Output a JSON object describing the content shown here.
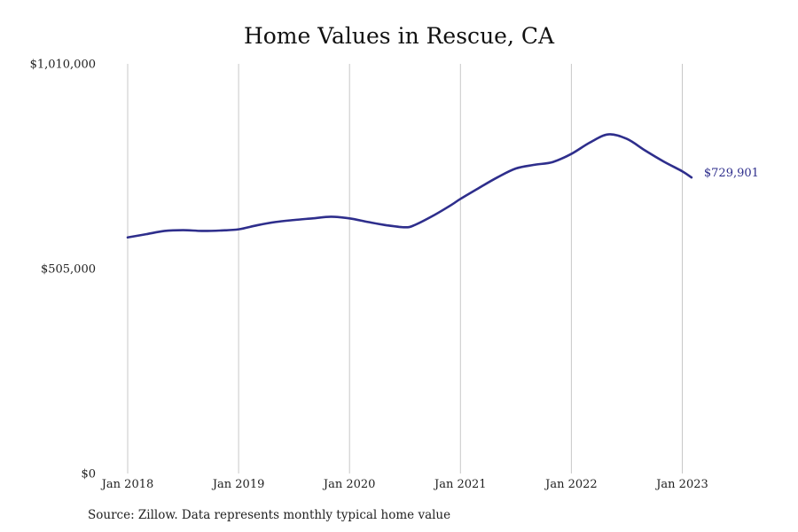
{
  "chart_data": {
    "type": "line",
    "title": "Home Values in Rescue, CA",
    "xlabel": "",
    "ylabel": "",
    "ylim": [
      0,
      1010000
    ],
    "y_ticks": [
      {
        "value": 0,
        "label": "$0"
      },
      {
        "value": 505000,
        "label": "$505,000"
      },
      {
        "value": 1010000,
        "label": "$1,010,000"
      }
    ],
    "x_ticks": [
      {
        "value": 2018.0,
        "label": "Jan 2018"
      },
      {
        "value": 2019.0,
        "label": "Jan 2019"
      },
      {
        "value": 2020.0,
        "label": "Jan 2020"
      },
      {
        "value": 2021.0,
        "label": "Jan 2021"
      },
      {
        "value": 2022.0,
        "label": "Jan 2022"
      },
      {
        "value": 2023.0,
        "label": "Jan 2023"
      }
    ],
    "xlim": [
      2018.0,
      2023.083
    ],
    "grid": "vertical",
    "colors": {
      "line": "#2e2e8c",
      "grid": "#c8c8c8"
    },
    "series": [
      {
        "values": [
          [
            2018.0,
            582000
          ],
          [
            2018.167,
            590000
          ],
          [
            2018.333,
            598000
          ],
          [
            2018.5,
            600000
          ],
          [
            2018.667,
            598000
          ],
          [
            2018.833,
            599000
          ],
          [
            2019.0,
            602000
          ],
          [
            2019.167,
            612000
          ],
          [
            2019.333,
            620000
          ],
          [
            2019.5,
            625000
          ],
          [
            2019.667,
            629000
          ],
          [
            2019.833,
            633000
          ],
          [
            2020.0,
            629000
          ],
          [
            2020.167,
            620000
          ],
          [
            2020.333,
            612000
          ],
          [
            2020.5,
            607000
          ],
          [
            2020.583,
            612000
          ],
          [
            2020.75,
            635000
          ],
          [
            2020.917,
            662000
          ],
          [
            2021.0,
            677000
          ],
          [
            2021.167,
            704000
          ],
          [
            2021.333,
            730000
          ],
          [
            2021.5,
            752000
          ],
          [
            2021.667,
            761000
          ],
          [
            2021.833,
            768000
          ],
          [
            2022.0,
            788000
          ],
          [
            2022.167,
            816000
          ],
          [
            2022.333,
            836000
          ],
          [
            2022.5,
            825000
          ],
          [
            2022.667,
            796000
          ],
          [
            2022.833,
            769000
          ],
          [
            2023.0,
            745000
          ],
          [
            2023.083,
            729901
          ]
        ]
      }
    ],
    "end_label": "$729,901"
  },
  "source_note": "Source: Zillow. Data represents monthly typical home value"
}
